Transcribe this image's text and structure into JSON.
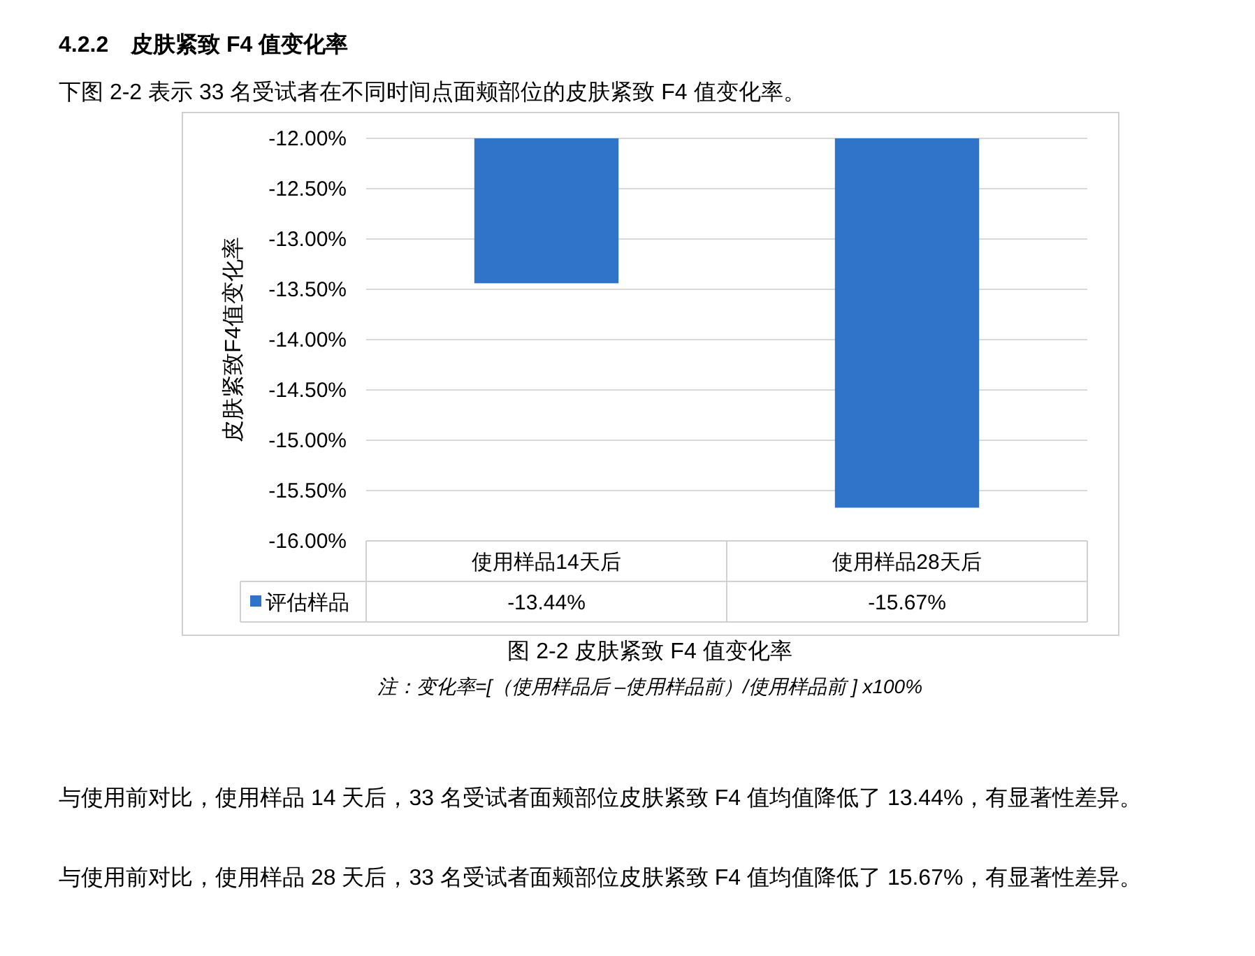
{
  "chart_data": {
    "type": "bar",
    "title": "4.2.2　皮肤紧致 F4 值变化率",
    "subtitle": "下图 2-2 表示 33 名受试者在不同时间点面颊部位的皮肤紧致 F4 值变化率。",
    "ylabel": "皮肤紧致F4值变化率",
    "categories": [
      "使用样品14天后",
      "使用样品28天后"
    ],
    "series": [
      {
        "name": "评估样品",
        "color": "#2f74c9",
        "values": [
          -13.44,
          -15.67
        ],
        "value_labels": [
          "-13.44%",
          "-15.67%"
        ]
      }
    ],
    "ylim": [
      -16,
      -12
    ],
    "yticks": [
      {
        "value": -12,
        "label": "-12.00%"
      },
      {
        "value": -12.5,
        "label": "-12.50%"
      },
      {
        "value": -13,
        "label": "-13.00%"
      },
      {
        "value": -13.5,
        "label": "-13.50%"
      },
      {
        "value": -14,
        "label": "-14.00%"
      },
      {
        "value": -14.5,
        "label": "-14.50%"
      },
      {
        "value": -15,
        "label": "-15.00%"
      },
      {
        "value": -15.5,
        "label": "-15.50%"
      },
      {
        "value": -16,
        "label": "-16.00%"
      }
    ],
    "grid": "y",
    "legend": "bottom",
    "annotations": [
      "图 2-2 皮肤紧致 F4 值变化率",
      "注：变化率=[（使用样品后 –使用样品前）/使用样品前 ] x100%",
      "与使用前对比，使用样品 14 天后，33 名受试者面颊部位皮肤紧致 F4 值均值降低了 13.44%，有显著性差异。",
      "与使用前对比，使用样品 28 天后，33 名受试者面颊部位皮肤紧致 F4 值均值降低了 15.67%，有显著性差异。"
    ]
  }
}
